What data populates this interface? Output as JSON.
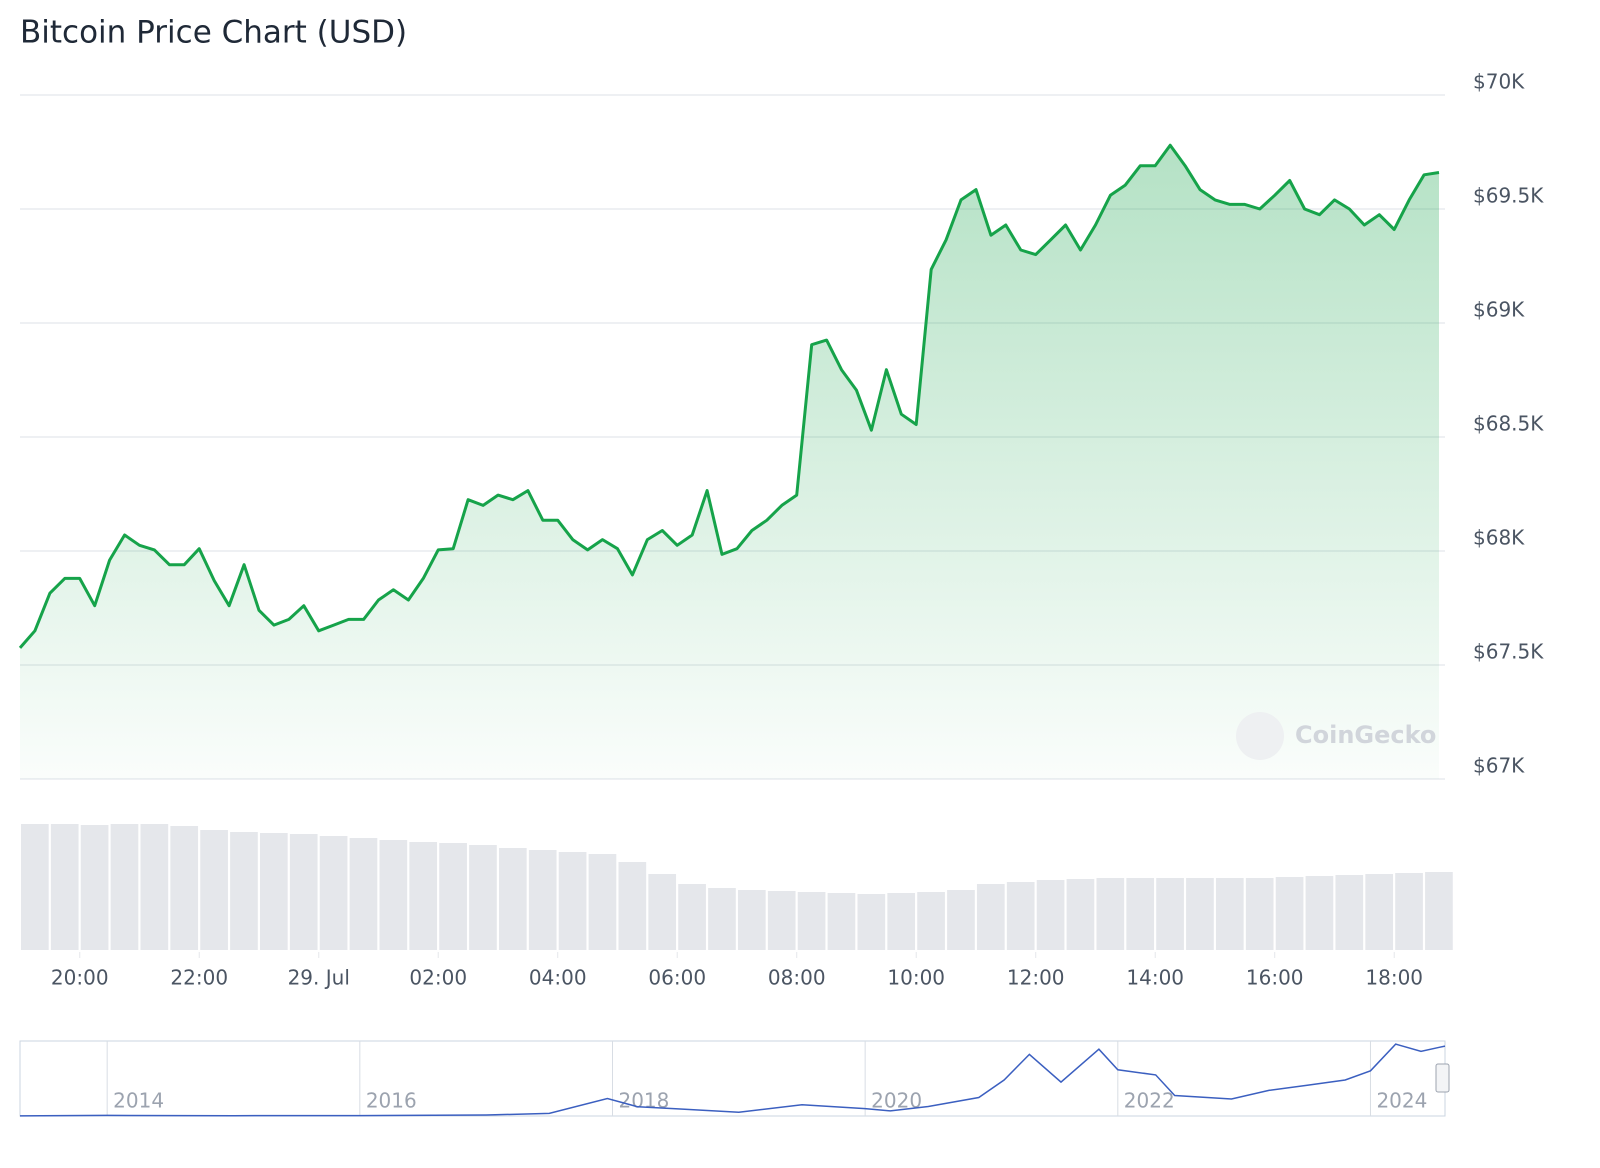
{
  "chart_data": {
    "type": "area",
    "title": "Bitcoin Price Chart (USD)",
    "watermark": "CoinGecko",
    "x": [
      19,
      19.25,
      19.5,
      19.75,
      20,
      20.25,
      20.5,
      20.75,
      21,
      21.25,
      21.5,
      21.75,
      22,
      22.25,
      22.5,
      22.75,
      23,
      23.25,
      23.5,
      23.75,
      24,
      24.25,
      24.5,
      24.75,
      25,
      25.25,
      25.5,
      25.75,
      26,
      26.25,
      26.5,
      26.75,
      27,
      27.25,
      27.5,
      27.75,
      28,
      28.25,
      28.5,
      28.75,
      29,
      29.25,
      29.5,
      29.75,
      30,
      30.25,
      30.5,
      30.75,
      31,
      31.25,
      31.5,
      31.75,
      32,
      32.25,
      32.5,
      32.75,
      33,
      33.25,
      33.5,
      33.75,
      34,
      34.25,
      34.5,
      34.75,
      35,
      35.25,
      35.5,
      35.75,
      36,
      36.25,
      36.5,
      36.75,
      37,
      37.25,
      37.5,
      37.75,
      38,
      38.25,
      38.5,
      38.75,
      39,
      39.25,
      39.5,
      39.75,
      40,
      40.25,
      40.5,
      40.75,
      41,
      41.25,
      41.5,
      41.75,
      42,
      42.25,
      42.5,
      42.75
    ],
    "series": [
      {
        "name": "Price",
        "color": "#16a34a",
        "values": [
          67575,
          67650,
          67815,
          67880,
          67880,
          67760,
          67960,
          68070,
          68025,
          68005,
          67940,
          67940,
          68010,
          67870,
          67760,
          67940,
          67740,
          67675,
          67700,
          67760,
          67650,
          67675,
          67700,
          67700,
          67785,
          67830,
          67785,
          67880,
          68005,
          68010,
          68225,
          68200,
          68245,
          68225,
          68265,
          68135,
          68135,
          68050,
          68005,
          68050,
          68010,
          67895,
          68050,
          68090,
          68025,
          68070,
          68265,
          67985,
          68010,
          68090,
          68135,
          68200,
          68245,
          68905,
          68925,
          68795,
          68705,
          68530,
          68795,
          68600,
          68555,
          69235,
          69365,
          69540,
          69585,
          69385,
          69430,
          69320,
          69300,
          69365,
          69430,
          69320,
          69430,
          69560,
          69605,
          69690,
          69690,
          69780,
          69690,
          69585,
          69540,
          69520,
          69520,
          69500,
          69560,
          69625,
          69500,
          69475,
          69540,
          69500,
          69430,
          69475,
          69410,
          69540,
          69650,
          69660
        ]
      }
    ],
    "xlim": [
      19,
      42.85
    ],
    "xticks": [
      {
        "value": 20,
        "label": "20:00"
      },
      {
        "value": 22,
        "label": "22:00"
      },
      {
        "value": 24,
        "label": "29. Jul"
      },
      {
        "value": 26,
        "label": "02:00"
      },
      {
        "value": 28,
        "label": "04:00"
      },
      {
        "value": 30,
        "label": "06:00"
      },
      {
        "value": 32,
        "label": "08:00"
      },
      {
        "value": 34,
        "label": "10:00"
      },
      {
        "value": 36,
        "label": "12:00"
      },
      {
        "value": 38,
        "label": "14:00"
      },
      {
        "value": 40,
        "label": "16:00"
      },
      {
        "value": 42,
        "label": "18:00"
      }
    ],
    "ylim": [
      67000,
      70000
    ],
    "yticks": [
      {
        "value": 67000,
        "label": "$67K"
      },
      {
        "value": 67500,
        "label": "$67.5K"
      },
      {
        "value": 68000,
        "label": "$68K"
      },
      {
        "value": 68500,
        "label": "$68.5K"
      },
      {
        "value": 69000,
        "label": "$69K"
      },
      {
        "value": 69500,
        "label": "$69.5K"
      },
      {
        "value": 70000,
        "label": "$70K"
      }
    ],
    "grid": true,
    "volume": {
      "color": "#e5e7eb",
      "ylim": [
        0,
        130
      ],
      "x": [
        19,
        19.5,
        20,
        20.5,
        21,
        21.5,
        22,
        22.5,
        23,
        23.5,
        24,
        24.5,
        25,
        25.5,
        26,
        26.5,
        27,
        27.5,
        28,
        28.5,
        29,
        29.5,
        30,
        30.5,
        31,
        31.5,
        32,
        32.5,
        33,
        33.5,
        34,
        34.5,
        35,
        35.5,
        36,
        36.5,
        37,
        37.5,
        38,
        38.5,
        39,
        39.5,
        40,
        40.5,
        41,
        41.5,
        42,
        42.5
      ],
      "values": [
        126,
        126,
        125,
        126,
        126,
        124,
        120,
        118,
        117,
        116,
        114,
        112,
        110,
        108,
        107,
        105,
        102,
        100,
        98,
        96,
        88,
        76,
        66,
        62,
        60,
        59,
        58,
        57,
        56,
        57,
        58,
        60,
        66,
        68,
        70,
        71,
        72,
        72,
        72,
        72,
        72,
        72,
        73,
        74,
        75,
        76,
        77,
        78
      ]
    },
    "navigator": {
      "color": "#3b5fc0",
      "ylim": [
        0,
        73000
      ],
      "xlim": [
        2013.31,
        2024.59
      ],
      "xticks": [
        2014,
        2016,
        2018,
        2020,
        2022,
        2024
      ],
      "x": [
        2013.31,
        2014,
        2015,
        2016,
        2017,
        2017.5,
        2017.96,
        2018.2,
        2018.5,
        2019,
        2019.5,
        2020,
        2020.2,
        2020.5,
        2020.9,
        2021.1,
        2021.3,
        2021.55,
        2021.85,
        2022,
        2022.3,
        2022.45,
        2022.9,
        2023.2,
        2023.5,
        2023.8,
        2024,
        2024.2,
        2024.4,
        2024.55,
        2024.59
      ],
      "values": [
        100,
        600,
        300,
        430,
        1000,
        2500,
        17000,
        9000,
        7000,
        3700,
        11000,
        7200,
        5000,
        9200,
        18000,
        35000,
        60000,
        33000,
        65000,
        45000,
        40000,
        20000,
        16500,
        25000,
        30000,
        35000,
        44000,
        70000,
        63000,
        67000,
        68000
      ]
    }
  }
}
